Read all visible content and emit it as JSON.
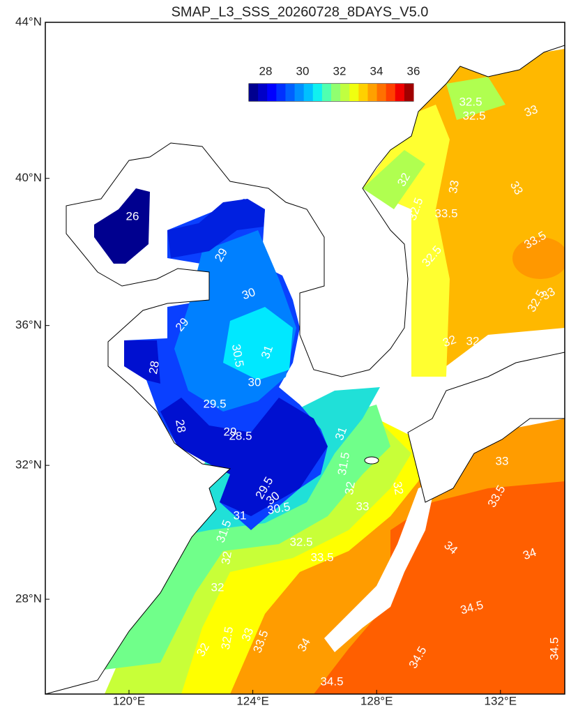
{
  "title": "SMAP_L3_SSS_20260728_8DAYS_V5.0",
  "lat_ticks": [
    {
      "value": 44,
      "label": "44°N"
    },
    {
      "value": 40,
      "label": "40°N"
    },
    {
      "value": 36,
      "label": "36°N"
    },
    {
      "value": 32,
      "label": "32°N"
    },
    {
      "value": 28,
      "label": "28°N"
    }
  ],
  "lon_ticks": [
    {
      "value": 120,
      "label": "120°E"
    },
    {
      "value": 124,
      "label": "124°E"
    },
    {
      "value": 128,
      "label": "128°E"
    },
    {
      "value": 132,
      "label": "132°E"
    }
  ],
  "colorbar": {
    "ticks": [
      28,
      30,
      32,
      34,
      36
    ]
  },
  "contour_labels": [
    26,
    29,
    30,
    29,
    30.5,
    31,
    28,
    30,
    29.5,
    28,
    29,
    28.5,
    31,
    31.5,
    32,
    29.5,
    30,
    30.5,
    31,
    31.5,
    32,
    32.5,
    33.5,
    33,
    32,
    34,
    34,
    33.5,
    33,
    32,
    34.5,
    34.5,
    34.5,
    34.5,
    34,
    33.5,
    33,
    32.5,
    32,
    32,
    32.5,
    33,
    33.5,
    33,
    33.5,
    32.5,
    33,
    32.5,
    32,
    32,
    32.5,
    32.5,
    33
  ]
}
